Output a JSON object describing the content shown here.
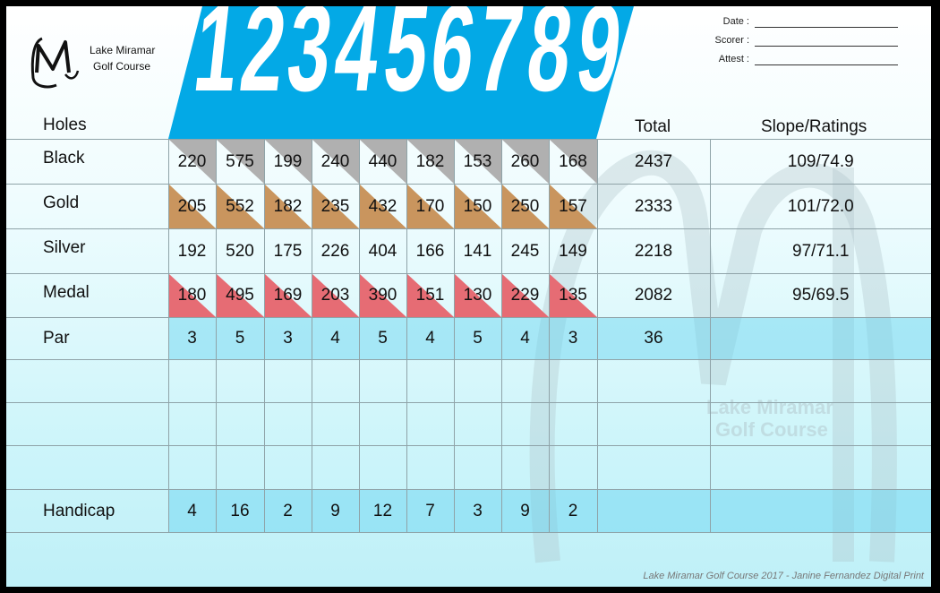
{
  "brand": {
    "name_line1": "Lake Miramar",
    "name_line2": "Golf Course"
  },
  "signature": [
    {
      "label": "Date :"
    },
    {
      "label": "Scorer :"
    },
    {
      "label": "Attest :"
    }
  ],
  "headers": {
    "holes": "Holes",
    "total": "Total",
    "slope": "Slope/Ratings"
  },
  "hole_numbers": [
    "1",
    "2",
    "3",
    "4",
    "5",
    "6",
    "7",
    "8",
    "9"
  ],
  "rows": [
    {
      "name": "Black",
      "values": [
        "220",
        "575",
        "199",
        "240",
        "440",
        "182",
        "153",
        "260",
        "168"
      ],
      "total": "2437",
      "slope": "109/74.9",
      "color": "#b0b0b0"
    },
    {
      "name": "Gold",
      "values": [
        "205",
        "552",
        "182",
        "235",
        "432",
        "170",
        "150",
        "250",
        "157"
      ],
      "total": "2333",
      "slope": "101/72.0",
      "color": "#c9955e"
    },
    {
      "name": "Silver",
      "values": [
        "192",
        "520",
        "175",
        "226",
        "404",
        "166",
        "141",
        "245",
        "149"
      ],
      "total": "2218",
      "slope": "97/71.1",
      "color": ""
    },
    {
      "name": "Medal",
      "values": [
        "180",
        "495",
        "169",
        "203",
        "390",
        "151",
        "130",
        "229",
        "135"
      ],
      "total": "2082",
      "slope": "95/69.5",
      "color": "#e66c74"
    }
  ],
  "par": {
    "name": "Par",
    "values": [
      "3",
      "5",
      "3",
      "4",
      "5",
      "4",
      "5",
      "4",
      "3"
    ],
    "total": "36",
    "slope": ""
  },
  "handicap": {
    "name": "Handicap",
    "values": [
      "4",
      "16",
      "2",
      "9",
      "12",
      "7",
      "3",
      "9",
      "2"
    ],
    "total": "",
    "slope": ""
  },
  "watermark": {
    "line1": "Lake Miramar",
    "line2": "Golf Course"
  },
  "footer": "Lake Miramar Golf Course 2017 - Janine Fernandez Digital Print",
  "colors": {
    "accent": "#03a9e6",
    "highlight": "#7fd7ef"
  }
}
